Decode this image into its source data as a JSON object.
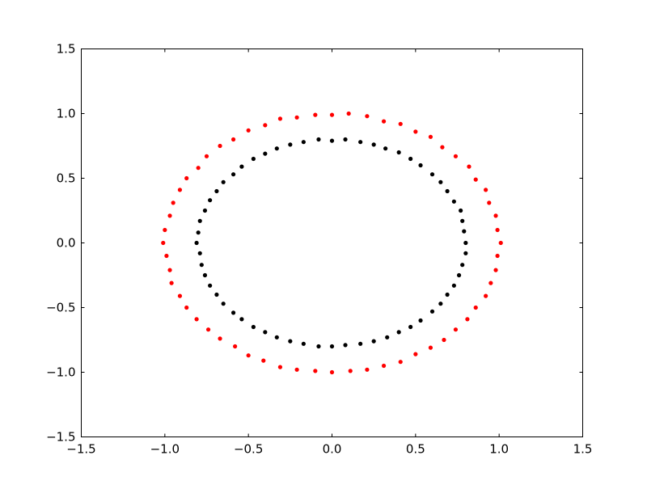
{
  "chart_data": {
    "type": "scatter",
    "title": "",
    "xlabel": "",
    "ylabel": "",
    "xlim": [
      -1.5,
      1.5
    ],
    "ylim": [
      -1.5,
      1.5
    ],
    "grid": false,
    "xticks": [
      "−1.5",
      "−1.0",
      "−0.5",
      "0.0",
      "0.5",
      "1.0",
      "1.5"
    ],
    "yticks": [
      "−1.5",
      "−1.0",
      "−0.5",
      "0.0",
      "0.5",
      "1.0",
      "1.5"
    ],
    "xtick_values": [
      -1.5,
      -1.0,
      -0.5,
      0.0,
      0.5,
      1.0,
      1.5
    ],
    "ytick_values": [
      -1.5,
      -1.0,
      -0.5,
      0.0,
      0.5,
      1.0,
      1.5
    ],
    "series": [
      {
        "color": "#ff0000",
        "points": [
          [
            1.01,
            0.0
          ],
          [
            0.99,
            0.1
          ],
          [
            0.98,
            0.21
          ],
          [
            0.94,
            0.31
          ],
          [
            0.92,
            0.41
          ],
          [
            0.86,
            0.49
          ],
          [
            0.82,
            0.59
          ],
          [
            0.74,
            0.67
          ],
          [
            0.66,
            0.74
          ],
          [
            0.59,
            0.82
          ],
          [
            0.5,
            0.86
          ],
          [
            0.41,
            0.92
          ],
          [
            0.31,
            0.94
          ],
          [
            0.21,
            0.98
          ],
          [
            0.1,
            1.0
          ],
          [
            0.0,
            0.99
          ],
          [
            -0.1,
            0.99
          ],
          [
            -0.21,
            0.97
          ],
          [
            -0.31,
            0.96
          ],
          [
            -0.4,
            0.91
          ],
          [
            -0.5,
            0.87
          ],
          [
            -0.59,
            0.8
          ],
          [
            -0.67,
            0.75
          ],
          [
            -0.75,
            0.67
          ],
          [
            -0.8,
            0.58
          ],
          [
            -0.87,
            0.5
          ],
          [
            -0.91,
            0.41
          ],
          [
            -0.95,
            0.31
          ],
          [
            -0.97,
            0.21
          ],
          [
            -1.0,
            0.1
          ],
          [
            -1.01,
            0.0
          ],
          [
            -0.99,
            -0.1
          ],
          [
            -0.97,
            -0.21
          ],
          [
            -0.96,
            -0.31
          ],
          [
            -0.91,
            -0.41
          ],
          [
            -0.87,
            -0.5
          ],
          [
            -0.81,
            -0.59
          ],
          [
            -0.74,
            -0.67
          ],
          [
            -0.67,
            -0.74
          ],
          [
            -0.58,
            -0.8
          ],
          [
            -0.5,
            -0.87
          ],
          [
            -0.41,
            -0.91
          ],
          [
            -0.31,
            -0.96
          ],
          [
            -0.21,
            -0.98
          ],
          [
            -0.1,
            -0.99
          ],
          [
            0.0,
            -1.0
          ],
          [
            0.11,
            -0.99
          ],
          [
            0.21,
            -0.98
          ],
          [
            0.31,
            -0.95
          ],
          [
            0.41,
            -0.92
          ],
          [
            0.5,
            -0.86
          ],
          [
            0.59,
            -0.81
          ],
          [
            0.67,
            -0.75
          ],
          [
            0.74,
            -0.67
          ],
          [
            0.81,
            -0.59
          ],
          [
            0.86,
            -0.5
          ],
          [
            0.92,
            -0.41
          ],
          [
            0.95,
            -0.31
          ],
          [
            0.98,
            -0.21
          ],
          [
            0.99,
            -0.1
          ]
        ]
      },
      {
        "color": "#000000",
        "points": [
          [
            0.8,
            0.0
          ],
          [
            0.79,
            0.09
          ],
          [
            0.78,
            0.17
          ],
          [
            0.77,
            0.25
          ],
          [
            0.73,
            0.32
          ],
          [
            0.69,
            0.4
          ],
          [
            0.65,
            0.47
          ],
          [
            0.6,
            0.53
          ],
          [
            0.53,
            0.6
          ],
          [
            0.47,
            0.65
          ],
          [
            0.4,
            0.7
          ],
          [
            0.32,
            0.73
          ],
          [
            0.25,
            0.76
          ],
          [
            0.17,
            0.78
          ],
          [
            0.08,
            0.8
          ],
          [
            0.0,
            0.79
          ],
          [
            -0.08,
            0.8
          ],
          [
            -0.17,
            0.78
          ],
          [
            -0.25,
            0.76
          ],
          [
            -0.33,
            0.73
          ],
          [
            -0.4,
            0.69
          ],
          [
            -0.47,
            0.65
          ],
          [
            -0.54,
            0.59
          ],
          [
            -0.59,
            0.53
          ],
          [
            -0.65,
            0.47
          ],
          [
            -0.69,
            0.4
          ],
          [
            -0.73,
            0.33
          ],
          [
            -0.76,
            0.25
          ],
          [
            -0.79,
            0.17
          ],
          [
            -0.8,
            0.08
          ],
          [
            -0.81,
            0.0
          ],
          [
            -0.79,
            -0.08
          ],
          [
            -0.78,
            -0.17
          ],
          [
            -0.76,
            -0.25
          ],
          [
            -0.73,
            -0.33
          ],
          [
            -0.69,
            -0.4
          ],
          [
            -0.65,
            -0.47
          ],
          [
            -0.59,
            -0.54
          ],
          [
            -0.54,
            -0.59
          ],
          [
            -0.47,
            -0.65
          ],
          [
            -0.4,
            -0.69
          ],
          [
            -0.33,
            -0.73
          ],
          [
            -0.25,
            -0.76
          ],
          [
            -0.17,
            -0.78
          ],
          [
            -0.08,
            -0.8
          ],
          [
            0.0,
            -0.8
          ],
          [
            0.08,
            -0.79
          ],
          [
            0.17,
            -0.78
          ],
          [
            0.25,
            -0.76
          ],
          [
            0.33,
            -0.73
          ],
          [
            0.4,
            -0.69
          ],
          [
            0.47,
            -0.65
          ],
          [
            0.53,
            -0.6
          ],
          [
            0.6,
            -0.53
          ],
          [
            0.65,
            -0.47
          ],
          [
            0.69,
            -0.4
          ],
          [
            0.73,
            -0.33
          ],
          [
            0.76,
            -0.25
          ],
          [
            0.78,
            -0.17
          ],
          [
            0.8,
            -0.08
          ]
        ]
      }
    ]
  }
}
